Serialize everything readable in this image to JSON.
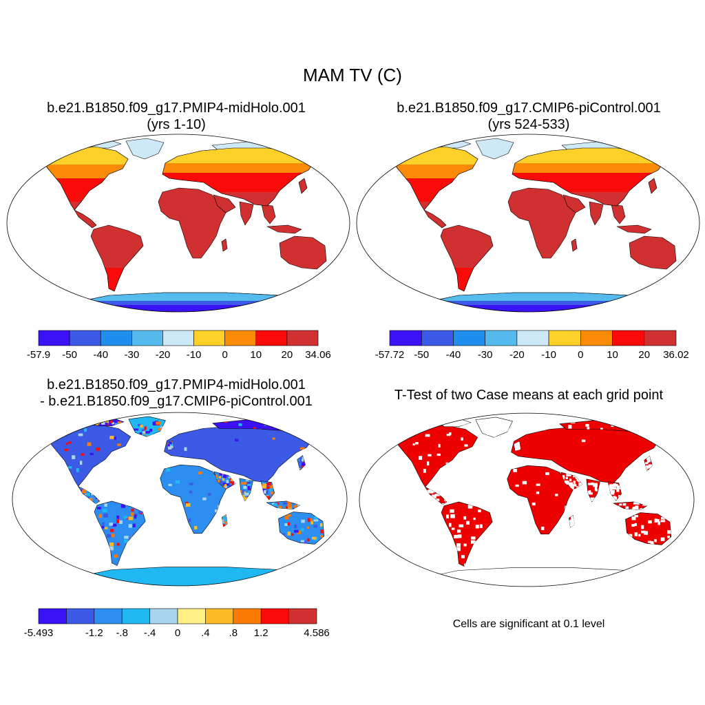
{
  "title": "MAM TV (C)",
  "panels": [
    {
      "title_line1": "b.e21.B1850.f09_g17.PMIP4-midHolo.001",
      "title_line2": "(yrs 1-10)",
      "colorbar": {
        "colors": [
          "#3a12f5",
          "#3b5ae6",
          "#1e8fee",
          "#55bbee",
          "#cde8f6",
          "#fdd12a",
          "#fb8a06",
          "#fb0a0a",
          "#d03030"
        ],
        "labels": [
          "-57.9",
          "-50",
          "-40",
          "-30",
          "-20",
          "-10",
          "0",
          "10",
          "20",
          "34.06"
        ]
      }
    },
    {
      "title_line1": "b.e21.B1850.f09_g17.CMIP6-piControl.001",
      "title_line2": "(yrs 524-533)",
      "colorbar": {
        "colors": [
          "#3a12f5",
          "#3b5ae6",
          "#1e8fee",
          "#55bbee",
          "#cde8f6",
          "#fdd12a",
          "#fb8a06",
          "#fb0a0a",
          "#d03030"
        ],
        "labels": [
          "-57.72",
          "-50",
          "-40",
          "-30",
          "-20",
          "-10",
          "0",
          "10",
          "20",
          "36.02"
        ]
      }
    },
    {
      "title_line1": "b.e21.B1850.f09_g17.PMIP4-midHolo.001",
      "title_line2": "- b.e21.B1850.f09_g17.CMIP6-piControl.001",
      "colorbar": {
        "colors": [
          "#3a12f5",
          "#3b5ae6",
          "#2c8ef0",
          "#20b8f2",
          "#a8d4ee",
          "#fff086",
          "#fcbb24",
          "#fb7a06",
          "#fb0a0a",
          "#d03030"
        ],
        "labels": [
          "-5.493",
          "",
          "-1.2",
          "-.8",
          "-.4",
          "0",
          ".4",
          ".8",
          "1.2",
          "",
          "4.586"
        ]
      }
    },
    {
      "title_line1": "T-Test of two Case means at each grid point",
      "note": "Cells are significant at 0.1 level",
      "significant_color": "#ee0000"
    }
  ],
  "colors": {
    "ocean": "#ffffff",
    "outline": "#000000"
  }
}
